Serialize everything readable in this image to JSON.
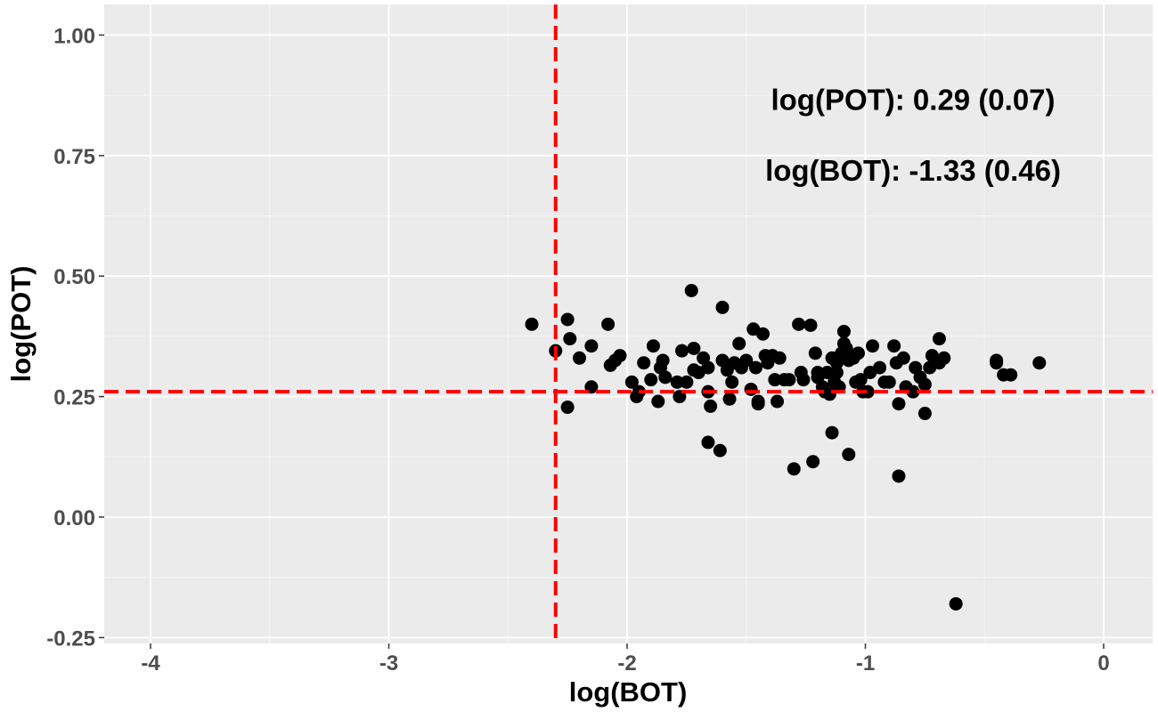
{
  "chart_data": {
    "type": "scatter",
    "xlabel": "log(BOT)",
    "ylabel": "log(POT)",
    "xlim": [
      -4.2,
      0.2
    ],
    "ylim": [
      -0.25,
      1.0
    ],
    "x_ticks": [
      -4,
      -3,
      -2,
      -1,
      0
    ],
    "x_tick_labels": [
      "-4",
      "-3",
      "-2",
      "-1",
      "0"
    ],
    "y_ticks": [
      -0.25,
      0.0,
      0.25,
      0.5,
      0.75,
      1.0
    ],
    "y_tick_labels": [
      "-0.25",
      "0.00",
      "0.25",
      "0.50",
      "0.75",
      "1.00"
    ],
    "grid": true,
    "reference_lines": [
      {
        "orientation": "vertical",
        "x": -2.3,
        "style": "dashed",
        "color": "#ff0000"
      },
      {
        "orientation": "horizontal",
        "y": 0.26,
        "style": "dashed",
        "color": "#ff0000"
      }
    ],
    "annotations": [
      {
        "text": "log(POT): 0.29 (0.07)",
        "x": -0.8,
        "y": 0.845
      },
      {
        "text": "log(BOT): -1.33 (0.46)",
        "x": -0.8,
        "y": 0.698
      }
    ],
    "points": [
      [
        -2.4,
        0.4
      ],
      [
        -2.3,
        0.345
      ],
      [
        -2.25,
        0.41
      ],
      [
        -2.24,
        0.37
      ],
      [
        -2.2,
        0.33
      ],
      [
        -2.25,
        0.228
      ],
      [
        -2.15,
        0.355
      ],
      [
        -2.15,
        0.27
      ],
      [
        -2.08,
        0.4
      ],
      [
        -2.07,
        0.315
      ],
      [
        -2.05,
        0.325
      ],
      [
        -2.03,
        0.335
      ],
      [
        -1.98,
        0.28
      ],
      [
        -1.96,
        0.25
      ],
      [
        -1.95,
        0.26
      ],
      [
        -1.93,
        0.32
      ],
      [
        -1.9,
        0.285
      ],
      [
        -1.89,
        0.355
      ],
      [
        -1.87,
        0.24
      ],
      [
        -1.86,
        0.31
      ],
      [
        -1.85,
        0.325
      ],
      [
        -1.84,
        0.29
      ],
      [
        -1.79,
        0.28
      ],
      [
        -1.78,
        0.25
      ],
      [
        -1.77,
        0.345
      ],
      [
        -1.75,
        0.28
      ],
      [
        -1.73,
        0.47
      ],
      [
        -1.72,
        0.35
      ],
      [
        -1.72,
        0.305
      ],
      [
        -1.7,
        0.3
      ],
      [
        -1.68,
        0.33
      ],
      [
        -1.66,
        0.31
      ],
      [
        -1.66,
        0.26
      ],
      [
        -1.65,
        0.23
      ],
      [
        -1.66,
        0.155
      ],
      [
        -1.61,
        0.138
      ],
      [
        -1.6,
        0.325
      ],
      [
        -1.6,
        0.435
      ],
      [
        -1.58,
        0.305
      ],
      [
        -1.57,
        0.245
      ],
      [
        -1.56,
        0.28
      ],
      [
        -1.55,
        0.32
      ],
      [
        -1.53,
        0.36
      ],
      [
        -1.52,
        0.31
      ],
      [
        -1.5,
        0.325
      ],
      [
        -1.48,
        0.265
      ],
      [
        -1.47,
        0.39
      ],
      [
        -1.46,
        0.31
      ],
      [
        -1.45,
        0.24
      ],
      [
        -1.45,
        0.235
      ],
      [
        -1.43,
        0.38
      ],
      [
        -1.42,
        0.335
      ],
      [
        -1.41,
        0.32
      ],
      [
        -1.39,
        0.335
      ],
      [
        -1.38,
        0.285
      ],
      [
        -1.37,
        0.24
      ],
      [
        -1.36,
        0.33
      ],
      [
        -1.34,
        0.285
      ],
      [
        -1.32,
        0.285
      ],
      [
        -1.3,
        0.1
      ],
      [
        -1.28,
        0.4
      ],
      [
        -1.27,
        0.3
      ],
      [
        -1.26,
        0.285
      ],
      [
        -1.23,
        0.398
      ],
      [
        -1.22,
        0.115
      ],
      [
        -1.21,
        0.34
      ],
      [
        -1.2,
        0.29
      ],
      [
        -1.2,
        0.3
      ],
      [
        -1.18,
        0.27
      ],
      [
        -1.17,
        0.26
      ],
      [
        -1.16,
        0.3
      ],
      [
        -1.15,
        0.255
      ],
      [
        -1.14,
        0.33
      ],
      [
        -1.14,
        0.175
      ],
      [
        -1.13,
        0.28
      ],
      [
        -1.12,
        0.3
      ],
      [
        -1.12,
        0.32
      ],
      [
        -1.11,
        0.27
      ],
      [
        -1.1,
        0.34
      ],
      [
        -1.09,
        0.36
      ],
      [
        -1.09,
        0.385
      ],
      [
        -1.08,
        0.35
      ],
      [
        -1.07,
        0.325
      ],
      [
        -1.07,
        0.13
      ],
      [
        -1.05,
        0.33
      ],
      [
        -1.04,
        0.28
      ],
      [
        -1.03,
        0.34
      ],
      [
        -1.02,
        0.285
      ],
      [
        -1.01,
        0.26
      ],
      [
        -0.99,
        0.26
      ],
      [
        -0.98,
        0.3
      ],
      [
        -0.97,
        0.355
      ],
      [
        -0.94,
        0.31
      ],
      [
        -0.92,
        0.28
      ],
      [
        -0.9,
        0.28
      ],
      [
        -0.88,
        0.355
      ],
      [
        -0.87,
        0.32
      ],
      [
        -0.86,
        0.235
      ],
      [
        -0.86,
        0.085
      ],
      [
        -0.84,
        0.33
      ],
      [
        -0.83,
        0.27
      ],
      [
        -0.8,
        0.26
      ],
      [
        -0.79,
        0.31
      ],
      [
        -0.77,
        0.29
      ],
      [
        -0.75,
        0.275
      ],
      [
        -0.75,
        0.215
      ],
      [
        -0.73,
        0.31
      ],
      [
        -0.72,
        0.335
      ],
      [
        -0.69,
        0.32
      ],
      [
        -0.69,
        0.37
      ],
      [
        -0.67,
        0.33
      ],
      [
        -0.62,
        -0.18
      ],
      [
        -0.45,
        0.325
      ],
      [
        -0.45,
        0.32
      ],
      [
        -0.42,
        0.295
      ],
      [
        -0.39,
        0.295
      ],
      [
        -0.27,
        0.32
      ]
    ]
  }
}
